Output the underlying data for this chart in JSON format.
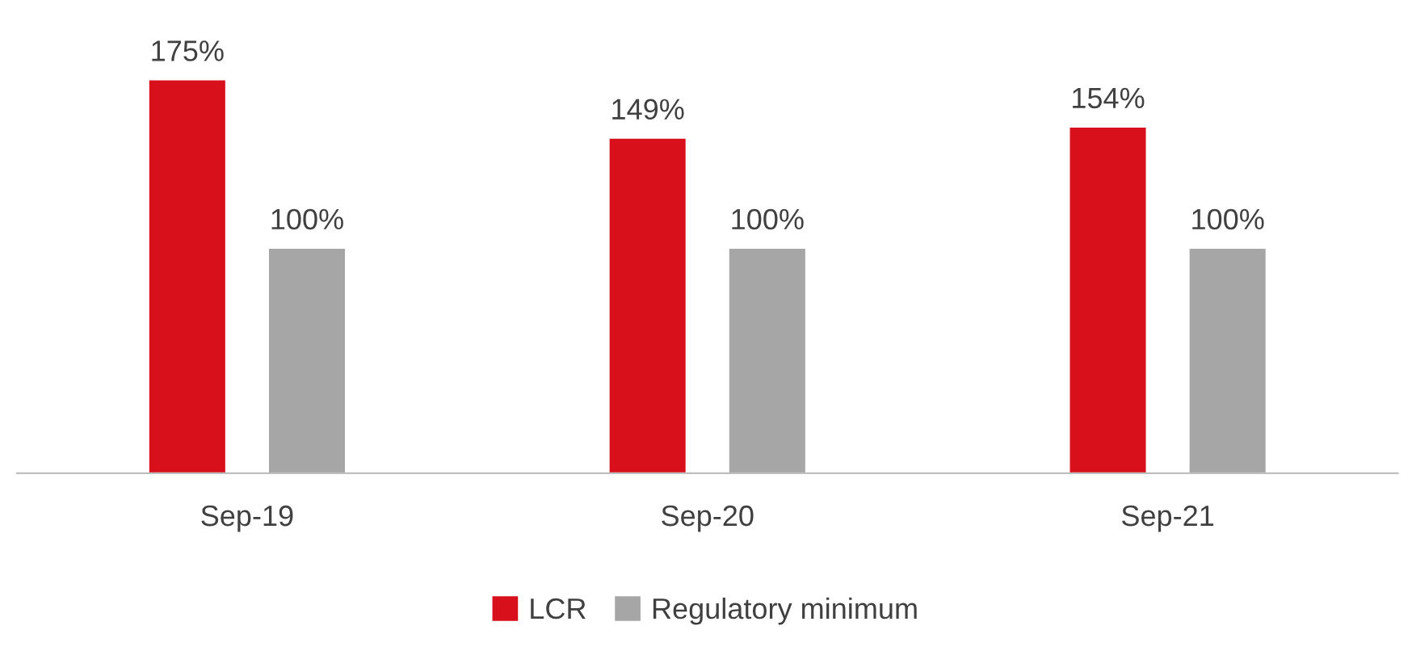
{
  "chart_data": {
    "type": "bar",
    "categories": [
      "Sep-19",
      "Sep-20",
      "Sep-21"
    ],
    "series": [
      {
        "name": "LCR",
        "color": "#d7101c",
        "values": [
          175,
          149,
          154
        ],
        "value_labels": [
          "175%",
          "149%",
          "154%"
        ]
      },
      {
        "name": "Regulatory minimum",
        "color": "#a6a6a6",
        "values": [
          100,
          100,
          100
        ],
        "value_labels": [
          "100%",
          "100%",
          "100%"
        ]
      }
    ],
    "grid": false,
    "legend": "bottom"
  }
}
